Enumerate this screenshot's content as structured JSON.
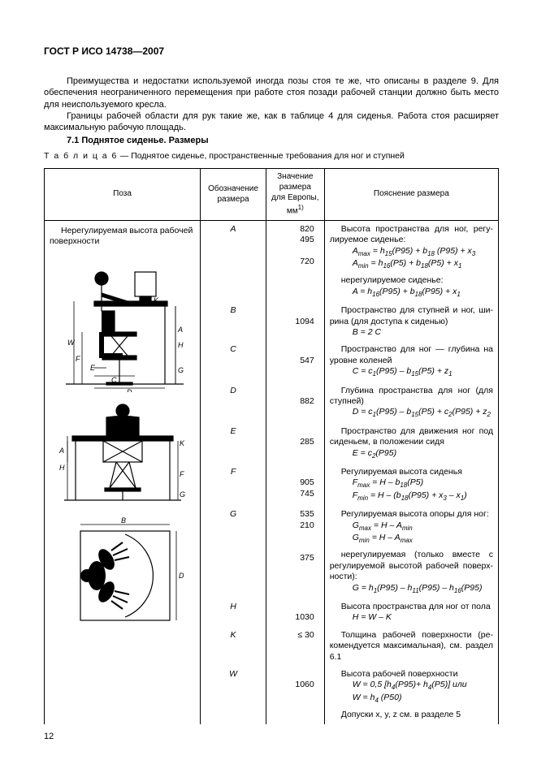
{
  "doc": {
    "header": "ГОСТ Р ИСО 14738—2007",
    "page_number": "12",
    "para1": "Преимущества и недостатки используемой иногда позы стоя те же, что описаны в разделе 9. Для обеспечения неограниченного перемещения при работе стоя позади рабочей станции должно быть место для неиспользуемого кресла.",
    "para2": "Границы рабочей области для рук такие же, как в таблице 4 для сиденья. Работа стоя расширяет максимальную рабочую площадь.",
    "section_title": "7.1 Поднятое сиденье. Размеры",
    "table_caption_prefix": "Т а б л и ц а  6",
    "table_caption_rest": " — Поднятое сиденье, пространственные требования для ног и ступней"
  },
  "table": {
    "headers": {
      "pose": "Поза",
      "symbol": "Обозначение размера",
      "value": "Значение размера для Европы, мм",
      "value_sup": "1)",
      "desc": "Пояснение размера"
    },
    "pose_text": "Нерегулируемая высота рабо­чей поверхности",
    "rows": [
      {
        "sym": "A",
        "vals": [
          "820",
          "495",
          "",
          "720"
        ],
        "desc_intro": "Высота пространства для ног, регу­лируемое сиденье:",
        "formulas": [
          "A_max = h_15(P95) + b_18 (P95) + x_3",
          "A_min = h_16(P5) + b_18(P5) + x_1"
        ],
        "desc2": "нерегулируемое сиденье:",
        "formulas2": [
          "A = h_16(P95) + b_18(P95) + x_1"
        ]
      },
      {
        "sym": "B",
        "vals": [
          "",
          "1094"
        ],
        "desc_intro": "Пространство для ступней и ног, ши­рина (для доступа к сиденью)",
        "formulas": [
          "B = 2 C"
        ]
      },
      {
        "sym": "C",
        "vals": [
          "",
          "547"
        ],
        "desc_intro": "Пространство для ног — глубина на уровне коленей",
        "formulas": [
          "C = c_1(P95) – b_15(P5) + z_1"
        ]
      },
      {
        "sym": "D",
        "vals": [
          "",
          "882"
        ],
        "desc_intro": "Глубина пространства для ног (для ступней)",
        "formulas": [
          "D = c_1(P95) – b_15(P5) + c_2(P95) + z_2"
        ]
      },
      {
        "sym": "E",
        "vals": [
          "",
          "285"
        ],
        "desc_intro": "Пространство для движения ног под сиденьем, в положении сидя",
        "formulas": [
          "E = c_2(P95)"
        ]
      },
      {
        "sym": "F",
        "vals": [
          "",
          "905",
          "745"
        ],
        "desc_intro": "Регулируемая высота сиденья",
        "formulas": [
          "F_max = H – b_18(P5)",
          "F_min = H – (b_18(P95) + x_3 – x_1)"
        ]
      },
      {
        "sym": "G",
        "vals": [
          "535",
          "210",
          "",
          "",
          "375"
        ],
        "desc_intro": "Регулируемая высота опоры для ног:",
        "formulas": [
          "G_max = H – A_min",
          "G_min = H – A_max"
        ],
        "desc2": "нерегулируемая (только вместе с регулируемой высотой рабочей поверх­ности):",
        "formulas2": [
          "G = h_1(P95) – h_11(P95) – h_16(P95)"
        ]
      },
      {
        "sym": "H",
        "vals": [
          "",
          "1030"
        ],
        "desc_intro": "Высота пространства для ног от пола",
        "formulas": [
          "H = W – K"
        ]
      },
      {
        "sym": "K",
        "vals": [
          "≤ 30"
        ],
        "desc_intro": "Толщина рабочей поверхности (ре­комендуется максимальная), см. раз­дел 6.1",
        "formulas": []
      },
      {
        "sym": "W",
        "vals": [
          "",
          "1060"
        ],
        "desc_intro": "Высота рабочей поверхности",
        "formulas": [
          "W = 0,5 [h_4(P95)+ h_4(P5)] или",
          "W = h_4 (P50)"
        ],
        "desc2": "Допуски x, y, z  см. в разделе 5"
      }
    ]
  }
}
